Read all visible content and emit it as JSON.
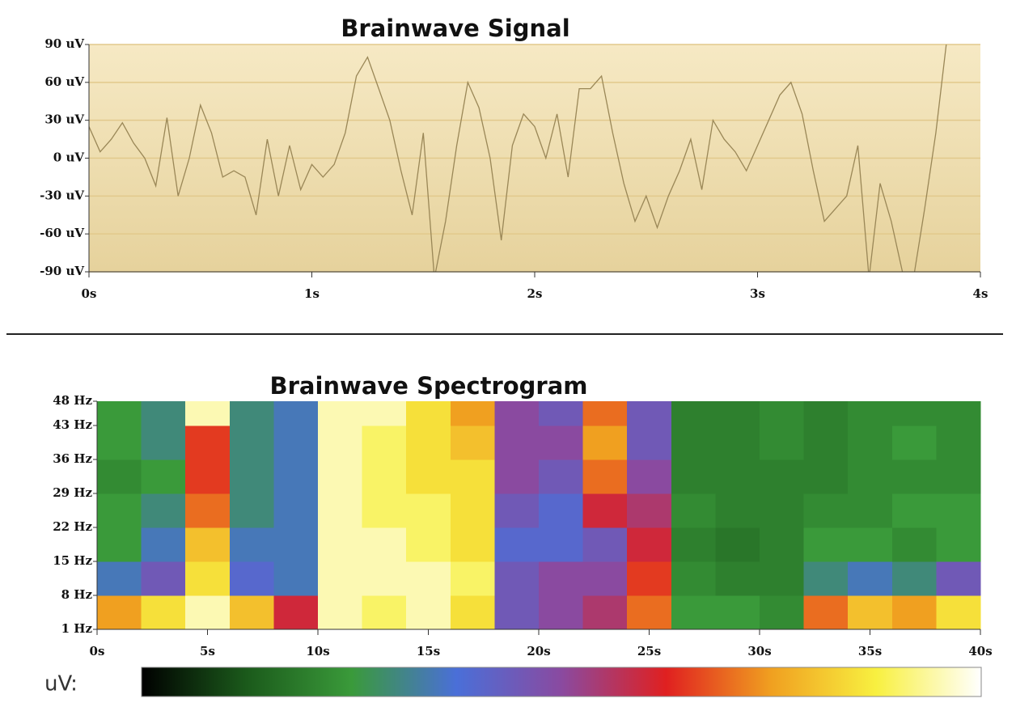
{
  "chart_data": [
    {
      "type": "line",
      "title": "Brainwave Signal",
      "color": "#9a8757",
      "grid": true,
      "xlim": [
        0,
        4
      ],
      "ylim": [
        -90,
        90
      ],
      "xticks": [
        {
          "value": 0,
          "label": "0s"
        },
        {
          "value": 1,
          "label": "1s"
        },
        {
          "value": 2,
          "label": "2s"
        },
        {
          "value": 3,
          "label": "3s"
        },
        {
          "value": 4,
          "label": "4s"
        }
      ],
      "yticks": [
        {
          "value": 90,
          "label": "90 uV"
        },
        {
          "value": 60,
          "label": "60 uV"
        },
        {
          "value": 30,
          "label": "30 uV"
        },
        {
          "value": 0,
          "label": "0 uV"
        },
        {
          "value": -30,
          "label": "-30 uV"
        },
        {
          "value": -60,
          "label": "-60 uV"
        },
        {
          "value": -90,
          "label": "-90 uV"
        }
      ],
      "x": [
        0,
        0.05,
        0.1,
        0.15,
        0.2,
        0.25,
        0.3,
        0.35,
        0.4,
        0.45,
        0.5,
        0.55,
        0.6,
        0.65,
        0.7,
        0.75,
        0.8,
        0.85,
        0.9,
        0.95,
        1.0,
        1.05,
        1.1,
        1.15,
        1.2,
        1.25,
        1.3,
        1.35,
        1.4,
        1.45,
        1.5,
        1.55,
        1.6,
        1.65,
        1.7,
        1.75,
        1.8,
        1.85,
        1.9,
        1.95,
        2.0,
        2.05,
        2.1,
        2.15,
        2.2,
        2.25,
        2.3,
        2.35,
        2.4,
        2.45,
        2.5,
        2.55,
        2.6,
        2.65,
        2.7,
        2.75,
        2.8,
        2.85,
        2.9,
        2.95,
        3.0,
        3.05,
        3.1,
        3.15,
        3.2,
        3.25,
        3.3,
        3.35,
        3.4,
        3.45,
        3.5,
        3.55,
        3.6,
        3.65,
        3.7,
        3.75,
        3.8,
        3.85
      ],
      "values": [
        25,
        5,
        15,
        28,
        12,
        0,
        -22,
        32,
        -30,
        0,
        42,
        20,
        -15,
        -10,
        -15,
        -45,
        15,
        -30,
        10,
        -25,
        -5,
        -15,
        -5,
        20,
        65,
        80,
        55,
        30,
        -10,
        -45,
        20,
        -95,
        -50,
        10,
        60,
        40,
        0,
        -65,
        10,
        35,
        25,
        0,
        35,
        -15,
        55,
        55,
        65,
        20,
        -20,
        -50,
        -30,
        -55,
        -30,
        -10,
        15,
        -25,
        30,
        15,
        5,
        -10,
        10,
        30,
        50,
        60,
        35,
        -10,
        -50,
        -40,
        -30,
        10,
        -95,
        -20,
        -50,
        -90,
        -95,
        -40,
        20,
        95
      ]
    },
    {
      "type": "heatmap",
      "title": "Brainwave Spectrogram",
      "colorbar_label": "uV:",
      "colors": [
        "#000000",
        "#1b5a1b",
        "#3a9a3a",
        "#4a6fd8",
        "#8a4aa0",
        "#e02020",
        "#f0a020",
        "#f8f040",
        "#ffffff"
      ],
      "zlim": [
        0,
        100
      ],
      "xlim": [
        0,
        40
      ],
      "ylim": [
        1,
        48
      ],
      "xticks": [
        {
          "value": 0,
          "label": "0s"
        },
        {
          "value": 5,
          "label": "5s"
        },
        {
          "value": 10,
          "label": "10s"
        },
        {
          "value": 15,
          "label": "15s"
        },
        {
          "value": 20,
          "label": "20s"
        },
        {
          "value": 25,
          "label": "25s"
        },
        {
          "value": 30,
          "label": "30s"
        },
        {
          "value": 35,
          "label": "35s"
        },
        {
          "value": 40,
          "label": "40s"
        }
      ],
      "yticks": [
        {
          "value": 1,
          "label": "1 Hz"
        },
        {
          "value": 8,
          "label": "8 Hz"
        },
        {
          "value": 15,
          "label": "15 Hz"
        },
        {
          "value": 22,
          "label": "22 Hz"
        },
        {
          "value": 29,
          "label": "29 Hz"
        },
        {
          "value": 36,
          "label": "36 Hz"
        },
        {
          "value": 43,
          "label": "43 Hz"
        },
        {
          "value": 48,
          "label": "48 Hz"
        }
      ],
      "xbins": [
        0,
        2,
        4,
        6,
        8,
        10,
        12,
        14,
        16,
        18,
        20,
        22,
        24,
        26,
        28,
        30,
        32,
        34,
        36,
        38,
        40
      ],
      "ybins": [
        1,
        8,
        15,
        22,
        29,
        36,
        43,
        48
      ],
      "values": [
        [
          75,
          85,
          95,
          80,
          60,
          95,
          90,
          95,
          85,
          45,
          50,
          55,
          70,
          25,
          25,
          22,
          70,
          80,
          75,
          85
        ],
        [
          35,
          45,
          85,
          40,
          35,
          95,
          95,
          95,
          90,
          45,
          50,
          50,
          65,
          22,
          20,
          20,
          30,
          35,
          30,
          45
        ],
        [
          25,
          35,
          80,
          35,
          35,
          95,
          95,
          90,
          85,
          40,
          40,
          45,
          60,
          20,
          18,
          20,
          25,
          25,
          22,
          25
        ],
        [
          25,
          30,
          70,
          30,
          35,
          95,
          90,
          90,
          85,
          45,
          40,
          60,
          55,
          22,
          20,
          20,
          22,
          22,
          25,
          25
        ],
        [
          22,
          25,
          65,
          30,
          35,
          95,
          90,
          85,
          85,
          50,
          45,
          70,
          50,
          20,
          20,
          20,
          20,
          22,
          22,
          22
        ],
        [
          25,
          30,
          65,
          30,
          35,
          95,
          90,
          85,
          80,
          50,
          50,
          75,
          45,
          20,
          20,
          22,
          20,
          22,
          25,
          22
        ],
        [
          25,
          30,
          95,
          30,
          35,
          95,
          95,
          85,
          75,
          50,
          45,
          70,
          45,
          20,
          20,
          22,
          20,
          22,
          22,
          22
        ]
      ]
    }
  ]
}
